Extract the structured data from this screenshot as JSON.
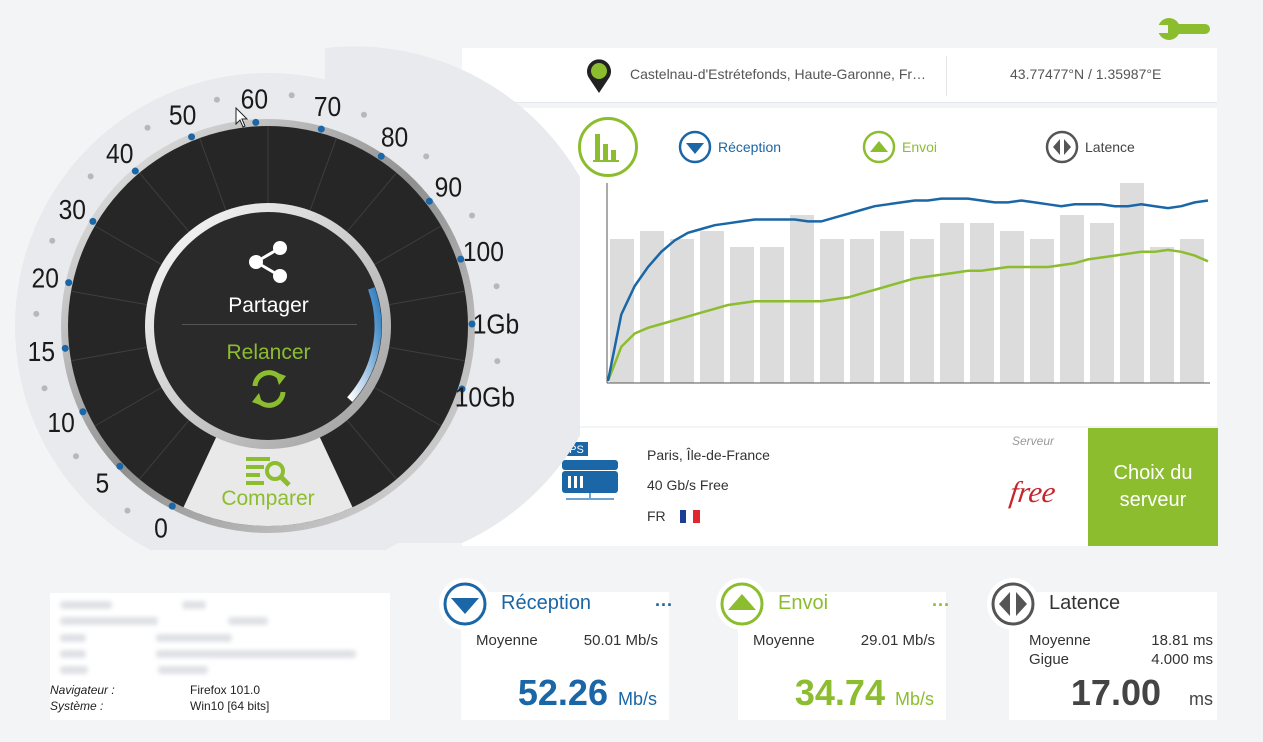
{
  "location": {
    "name": "Castelnau-d'Estrétefonds, Haute-Garonne, France",
    "coords": "43.77477°N / 1.35987°E"
  },
  "legend": {
    "reception": "Réception",
    "envoi": "Envoi",
    "latence": "Latence"
  },
  "colors": {
    "reception": "#1a66a6",
    "envoi": "#8cbd2f",
    "bars": "#dcdcdc",
    "gauge_dark": "#262626"
  },
  "chart_data": {
    "type": "line",
    "bars": [
      0.72,
      0.76,
      0.72,
      0.76,
      0.68,
      0.68,
      0.84,
      0.72,
      0.72,
      0.76,
      0.72,
      0.8,
      0.8,
      0.76,
      0.72,
      0.84,
      0.8,
      1.0,
      0.68,
      0.72
    ],
    "series": [
      {
        "name": "Réception",
        "values": [
          0.0,
          0.35,
          0.5,
          0.6,
          0.68,
          0.74,
          0.78,
          0.8,
          0.82,
          0.83,
          0.84,
          0.85,
          0.85,
          0.85,
          0.85,
          0.84,
          0.84,
          0.86,
          0.88,
          0.9,
          0.92,
          0.93,
          0.94,
          0.95,
          0.95,
          0.96,
          0.96,
          0.96,
          0.95,
          0.94,
          0.94,
          0.95,
          0.94,
          0.93,
          0.92,
          0.93,
          0.93,
          0.93,
          0.92,
          0.92,
          0.93,
          0.92,
          0.91,
          0.92,
          0.94,
          0.95
        ]
      },
      {
        "name": "Envoi",
        "values": [
          0.0,
          0.18,
          0.25,
          0.28,
          0.3,
          0.32,
          0.34,
          0.36,
          0.38,
          0.4,
          0.41,
          0.42,
          0.42,
          0.42,
          0.42,
          0.42,
          0.42,
          0.43,
          0.44,
          0.46,
          0.48,
          0.5,
          0.52,
          0.54,
          0.55,
          0.56,
          0.57,
          0.58,
          0.58,
          0.59,
          0.6,
          0.6,
          0.6,
          0.6,
          0.61,
          0.62,
          0.64,
          0.65,
          0.66,
          0.67,
          0.68,
          0.68,
          0.69,
          0.68,
          0.66,
          0.63
        ]
      }
    ]
  },
  "server": {
    "label": "Serveur",
    "city": "Paris, Île-de-France",
    "bandwidth": "40 Gb/s Free",
    "country": "FR",
    "ips_label": "IPS",
    "logo": "free",
    "choose_button": "Choix du serveur"
  },
  "gauge": {
    "ticks": [
      "0",
      "5",
      "10",
      "15",
      "20",
      "30",
      "40",
      "50",
      "60",
      "70",
      "80",
      "90",
      "100",
      "1Gb",
      "10Gb"
    ],
    "share": "Partager",
    "relaunch": "Relancer",
    "compare": "Comparer"
  },
  "system": {
    "navigator_label": "Navigateur :",
    "navigator_value": "Firefox 101.0",
    "os_label": "Système :",
    "os_value": "Win10 [64 bits]"
  },
  "cards": {
    "reception": {
      "title": "Réception",
      "dots": "...",
      "avg_label": "Moyenne",
      "avg_value": "50.01 Mb/s",
      "big": "52.26",
      "unit": "Mb/s"
    },
    "envoi": {
      "title": "Envoi",
      "dots": "...",
      "avg_label": "Moyenne",
      "avg_value": "29.01 Mb/s",
      "big": "34.74",
      "unit": "Mb/s"
    },
    "latence": {
      "title": "Latence",
      "avg_label": "Moyenne",
      "avg_value": "18.81 ms",
      "jitter_label": "Gigue",
      "jitter_value": "4.000 ms",
      "big": "17.00",
      "unit": "ms"
    }
  }
}
